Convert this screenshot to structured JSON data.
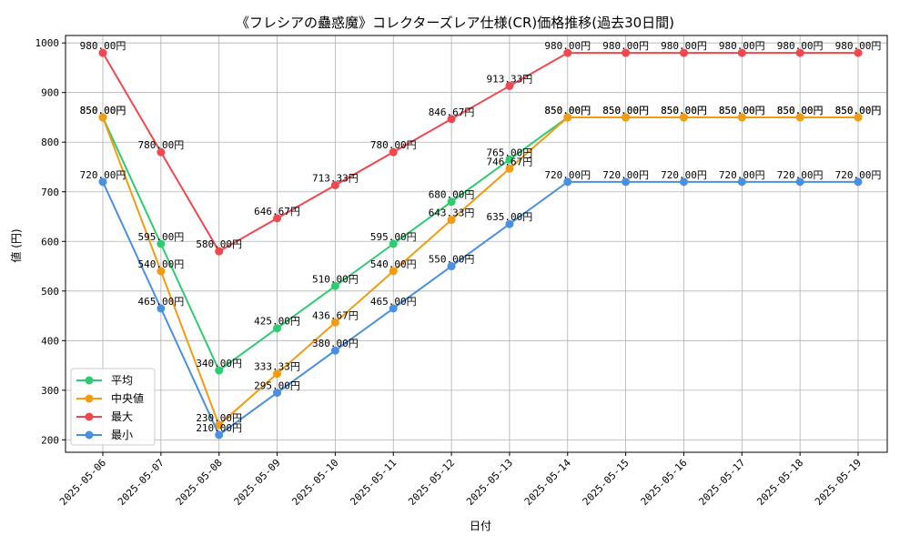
{
  "chart_data": {
    "type": "line",
    "title": "《フレシアの蠱惑魔》コレクターズレア仕様(CR)価格推移(過去30日間)",
    "xlabel": "日付",
    "ylabel": "値 (円)",
    "ylim": [
      175,
      1015
    ],
    "yticks": [
      200,
      300,
      400,
      500,
      600,
      700,
      800,
      900,
      1000
    ],
    "grid": true,
    "legend_position": "lower-left",
    "categories": [
      "2025-05-06",
      "2025-05-07",
      "2025-05-08",
      "2025-05-09",
      "2025-05-10",
      "2025-05-11",
      "2025-05-12",
      "2025-05-13",
      "2025-05-14",
      "2025-05-15",
      "2025-05-16",
      "2025-05-17",
      "2025-05-18",
      "2025-05-19"
    ],
    "series": [
      {
        "name": "平均",
        "color": "#2ecc71",
        "values": [
          850,
          595,
          340,
          425,
          510,
          595,
          680,
          765,
          850,
          850,
          850,
          850,
          850,
          850
        ],
        "labels": [
          "850.00円",
          "595.00円",
          "340.00円",
          "425.00円",
          "510.00円",
          "595.00円",
          "680.00円",
          "765.00円",
          "850.00円",
          "850.00円",
          "850.00円",
          "850.00円",
          "850.00円",
          "850.00円"
        ]
      },
      {
        "name": "中央値",
        "color": "#f39c12",
        "values": [
          850,
          540,
          230,
          333.33,
          436.67,
          540,
          643.33,
          746.67,
          850,
          850,
          850,
          850,
          850,
          850
        ],
        "labels": [
          "850.00円",
          "540.00円",
          "230.00円",
          "333.33円",
          "436.67円",
          "540.00円",
          "643.33円",
          "746.67円",
          "850.00円",
          "850.00円",
          "850.00円",
          "850.00円",
          "850.00円",
          "850.00円"
        ]
      },
      {
        "name": "最大",
        "color": "#f0484e",
        "values": [
          980,
          780,
          580,
          646.67,
          713.33,
          780,
          846.67,
          913.33,
          980,
          980,
          980,
          980,
          980,
          980
        ],
        "labels": [
          "980.00円",
          "780.00円",
          "580.00円",
          "646.67円",
          "713.33円",
          "780.00円",
          "846.67円",
          "913.33円",
          "980.00円",
          "980.00円",
          "980.00円",
          "980.00円",
          "980.00円",
          "980.00円"
        ]
      },
      {
        "name": "最小",
        "color": "#4a90e2",
        "values": [
          720,
          465,
          210,
          295,
          380,
          465,
          550,
          635,
          720,
          720,
          720,
          720,
          720,
          720
        ],
        "labels": [
          "720.00円",
          "465.00円",
          "210.00円",
          "295.00円",
          "380.00円",
          "465.00円",
          "550.00円",
          "635.00円",
          "720.00円",
          "720.00円",
          "720.00円",
          "720.00円",
          "720.00円",
          "720.00円"
        ]
      }
    ]
  }
}
